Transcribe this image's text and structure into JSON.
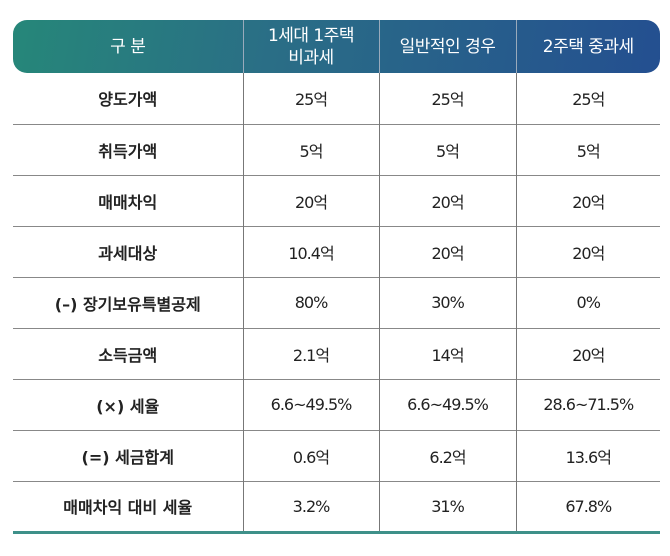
{
  "header": [
    "구 분",
    "1세대 1주택\n비과세",
    "일반적인 경우",
    "2주택 중과세"
  ],
  "rows": [
    [
      "양도가액",
      "25억",
      "25억",
      "25억"
    ],
    [
      "취득가액",
      "5억",
      "5억",
      "5억"
    ],
    [
      "매매차익",
      "20억",
      "20억",
      "20억"
    ],
    [
      "과세대상",
      "10.4억",
      "20억",
      "20억"
    ],
    [
      "(–) 장기보유특별공제",
      "80%",
      "30%",
      "0%"
    ],
    [
      "소득금액",
      "2.1억",
      "14억",
      "20억"
    ],
    [
      "(×) 세율",
      "6.6~49.5%",
      "6.6~49.5%",
      "28.6~71.5%"
    ],
    [
      "(=) 세금합계",
      "0.6억",
      "6.2억",
      "13.6억"
    ],
    [
      "매매차익 대비 세율",
      "3.2%",
      "31%",
      "67.8%"
    ]
  ]
}
